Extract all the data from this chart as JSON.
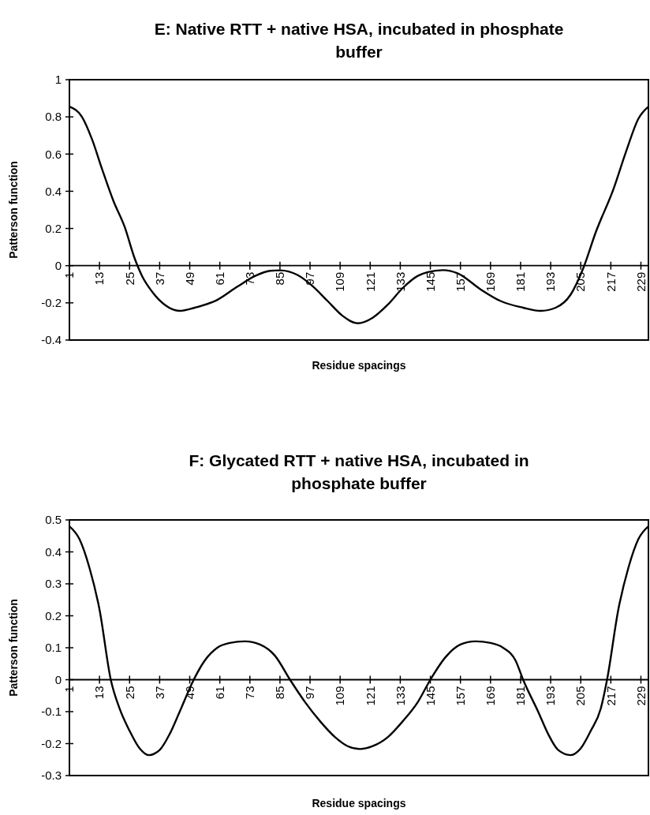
{
  "chart_data": [
    {
      "type": "line",
      "title": "E: Native RTT + native HSA, incubated in phosphate buffer",
      "xlabel": "Residue spacings",
      "ylabel": "Patterson function",
      "color": "#000000",
      "x": [
        1,
        6,
        10,
        14,
        18.5,
        23,
        27,
        30,
        34,
        39,
        45,
        51,
        60,
        68,
        75,
        81,
        85,
        92,
        98,
        104,
        110,
        116,
        122,
        128,
        134,
        140,
        144,
        150,
        156,
        165,
        173,
        182,
        189,
        195,
        201,
        206,
        211,
        218,
        223,
        228,
        232
      ],
      "values": [
        0.855,
        0.8,
        0.68,
        0.52,
        0.35,
        0.21,
        0.04,
        -0.056,
        -0.14,
        -0.21,
        -0.243,
        -0.226,
        -0.184,
        -0.113,
        -0.056,
        -0.028,
        -0.025,
        -0.05,
        -0.11,
        -0.19,
        -0.27,
        -0.31,
        -0.28,
        -0.21,
        -0.12,
        -0.055,
        -0.035,
        -0.024,
        -0.042,
        -0.127,
        -0.19,
        -0.226,
        -0.243,
        -0.226,
        -0.155,
        -0.014,
        0.18,
        0.41,
        0.61,
        0.79,
        0.855
      ],
      "xlim": [
        1,
        232
      ],
      "xticks": [
        1,
        13,
        25,
        37,
        49,
        61,
        73,
        85,
        97,
        109,
        121,
        133,
        145,
        157,
        169,
        181,
        193,
        205,
        217,
        229
      ],
      "ylim": [
        -0.4,
        1
      ],
      "yticks": [
        -0.4,
        -0.2,
        0,
        0.2,
        0.4,
        0.6,
        0.8,
        1
      ]
    },
    {
      "type": "line",
      "title": "F: Glycated RTT + native HSA, incubated in phosphate buffer",
      "xlabel": "Residue spacings",
      "ylabel": "Patterson function",
      "color": "#000000",
      "x": [
        1,
        5,
        9,
        13,
        17.5,
        21,
        25,
        29,
        32.6,
        37,
        41,
        45,
        50.6,
        55,
        60,
        65,
        71,
        77,
        83,
        89,
        95,
        101,
        107,
        112,
        117,
        122,
        128,
        134,
        140,
        145,
        151,
        157,
        163,
        169,
        174,
        179,
        182,
        188,
        192,
        196,
        201,
        205,
        209,
        213,
        215.5,
        220,
        224,
        228,
        232
      ],
      "values": [
        0.48,
        0.44,
        0.35,
        0.22,
        0,
        -0.09,
        -0.16,
        -0.215,
        -0.236,
        -0.22,
        -0.17,
        -0.1,
        0,
        0.06,
        0.1,
        0.115,
        0.12,
        0.11,
        0.075,
        0,
        -0.07,
        -0.13,
        -0.18,
        -0.208,
        -0.217,
        -0.208,
        -0.18,
        -0.13,
        -0.07,
        0,
        0.07,
        0.11,
        0.12,
        0.115,
        0.1,
        0.06,
        0,
        -0.1,
        -0.17,
        -0.22,
        -0.236,
        -0.215,
        -0.16,
        -0.09,
        0,
        0.22,
        0.35,
        0.44,
        0.48
      ],
      "xlim": [
        1,
        232
      ],
      "xticks": [
        1,
        13,
        25,
        37,
        49,
        61,
        73,
        85,
        97,
        109,
        121,
        133,
        145,
        157,
        169,
        181,
        193,
        205,
        217,
        229
      ],
      "ylim": [
        -0.3,
        0.5
      ],
      "yticks": [
        -0.3,
        -0.2,
        -0.1,
        0,
        0.1,
        0.2,
        0.3,
        0.4,
        0.5
      ]
    }
  ]
}
